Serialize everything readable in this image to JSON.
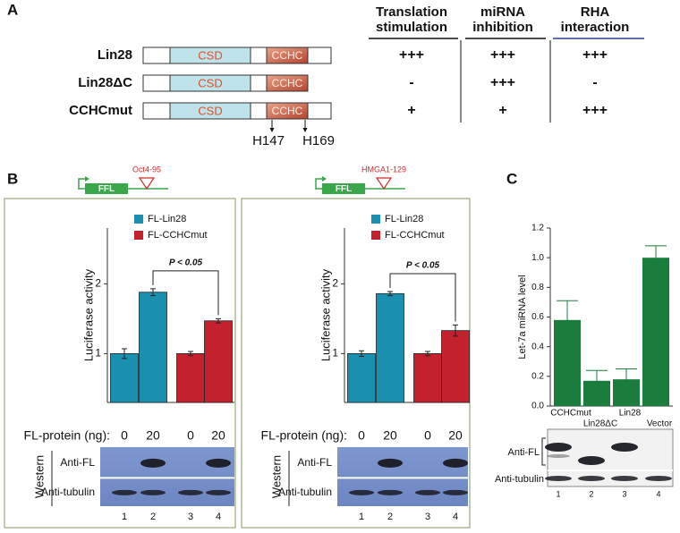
{
  "panel_a": {
    "label": "A",
    "headers": [
      [
        "Translation",
        "stimulation"
      ],
      [
        "miRNA",
        "inhibition"
      ],
      [
        "RHA",
        "interaction"
      ]
    ],
    "rows": [
      {
        "name": "Lin28",
        "domains": [
          "CSD",
          "CCHC"
        ],
        "scores": [
          "+++",
          "+++",
          "+++"
        ]
      },
      {
        "name": "Lin28ΔC",
        "domains": [
          "CSD",
          "CCHC"
        ],
        "scores": [
          "-",
          "+++",
          "-"
        ]
      },
      {
        "name": "CCHCmut",
        "domains": [
          "CSD",
          "CCHC"
        ],
        "scores": [
          "+",
          "+",
          "+++"
        ]
      }
    ],
    "mutations": [
      "H147",
      "H169"
    ]
  },
  "chart_data": [
    {
      "type": "bar",
      "panel_label": "B",
      "construct": {
        "reporter": "FFL",
        "site": "Oct4-95"
      },
      "ylabel": "Luciferase activity",
      "xlabel": "FL-protein (ng):",
      "categories": [
        "0",
        "20",
        "0",
        "20"
      ],
      "series": [
        {
          "name": "FL-Lin28",
          "color": "#1a8fb0",
          "values": [
            1.0,
            1.88,
            null,
            null
          ],
          "errors": [
            0.07,
            0.05,
            null,
            null
          ]
        },
        {
          "name": "FL-CCHCmut",
          "color": "#c4212f",
          "values": [
            null,
            null,
            1.0,
            1.47
          ],
          "errors": [
            null,
            null,
            0.03,
            0.03
          ]
        }
      ],
      "ylim": [
        0.3,
        2.8
      ],
      "yticks": [
        1,
        2
      ],
      "annotation": "P < 0.05",
      "western": {
        "title": "Western",
        "rows": [
          "Anti-FL",
          "Anti-tubulin"
        ],
        "lanes": [
          1,
          2,
          3,
          4
        ]
      }
    },
    {
      "type": "bar",
      "construct": {
        "reporter": "FFL",
        "site": "HMGA1-129"
      },
      "ylabel": "Luciferase activity",
      "xlabel": "FL-protein (ng):",
      "categories": [
        "0",
        "20",
        "0",
        "20"
      ],
      "series": [
        {
          "name": "FL-Lin28",
          "color": "#1a8fb0",
          "values": [
            1.0,
            1.86,
            null,
            null
          ],
          "errors": [
            0.04,
            0.03,
            null,
            null
          ]
        },
        {
          "name": "FL-CCHCmut",
          "color": "#c4212f",
          "values": [
            null,
            null,
            1.0,
            1.33
          ],
          "errors": [
            null,
            null,
            0.03,
            0.08
          ]
        }
      ],
      "ylim": [
        0.3,
        2.8
      ],
      "yticks": [
        1,
        2
      ],
      "annotation": "P < 0.05",
      "western": {
        "title": "Western",
        "rows": [
          "Anti-FL",
          "Anti-tubulin"
        ],
        "lanes": [
          1,
          2,
          3,
          4
        ]
      }
    },
    {
      "type": "bar",
      "panel_label": "C",
      "ylabel": "Let-7a miRNA level",
      "categories": [
        "CCHCmut",
        "Lin28ΔC",
        "Lin28",
        "Vector"
      ],
      "series": [
        {
          "color": "#1b7d3d",
          "values": [
            0.58,
            0.17,
            0.18,
            1.0
          ],
          "errors": [
            0.13,
            0.07,
            0.07,
            0.08
          ]
        }
      ],
      "ylim": [
        0,
        1.2
      ],
      "yticks": [
        {
          "value": 0,
          "label": "0.0"
        },
        {
          "value": 0.2,
          "label": "0.2"
        },
        {
          "value": 0.4,
          "label": "0.4"
        },
        {
          "value": 0.6,
          "label": "0.6"
        },
        {
          "value": 0.8,
          "label": "0.8"
        },
        {
          "value": 1.0,
          "label": "1.0"
        },
        {
          "value": 1.2,
          "label": "1.2"
        }
      ],
      "western": {
        "rows": [
          "Anti-FL",
          "Anti-tubulin"
        ],
        "lanes": [
          1,
          2,
          3,
          4
        ]
      }
    }
  ]
}
